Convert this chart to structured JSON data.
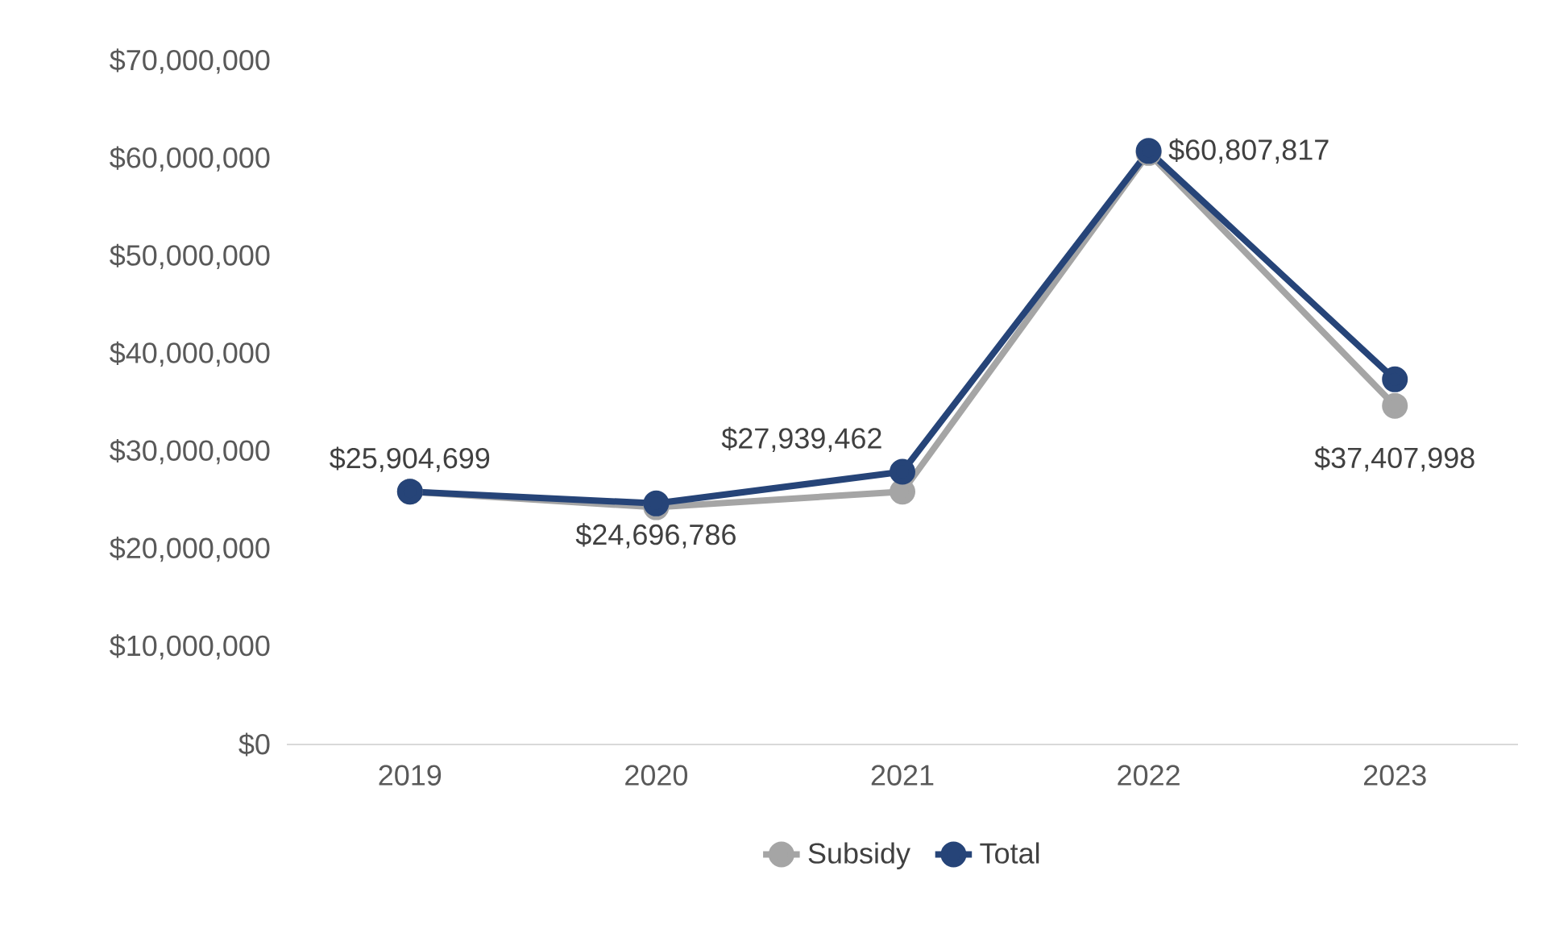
{
  "chart_data": {
    "type": "line",
    "categories": [
      "2019",
      "2020",
      "2021",
      "2022",
      "2023"
    ],
    "series": [
      {
        "name": "Subsidy",
        "color": "#a5a5a5",
        "values": [
          25900000,
          24300000,
          25900000,
          60600000,
          34700000
        ]
      },
      {
        "name": "Total",
        "color": "#264478",
        "values": [
          25904699,
          24696786,
          27939462,
          60807817,
          37407998
        ],
        "value_labels": [
          "$25,904,699",
          "$24,696,786",
          "$27,939,462",
          "$60,807,817",
          "$37,407,998"
        ]
      }
    ],
    "ylim": [
      0,
      70000000
    ],
    "yticks": [
      {
        "value": 0,
        "label": "$0"
      },
      {
        "value": 10000000,
        "label": "$10,000,000"
      },
      {
        "value": 20000000,
        "label": "$20,000,000"
      },
      {
        "value": 30000000,
        "label": "$30,000,000"
      },
      {
        "value": 40000000,
        "label": "$40,000,000"
      },
      {
        "value": 50000000,
        "label": "$50,000,000"
      },
      {
        "value": 60000000,
        "label": "$60,000,000"
      },
      {
        "value": 70000000,
        "label": "$70,000,000"
      }
    ],
    "grid": false,
    "legend": "bottom",
    "marker": "circle",
    "line_style": "solid"
  }
}
